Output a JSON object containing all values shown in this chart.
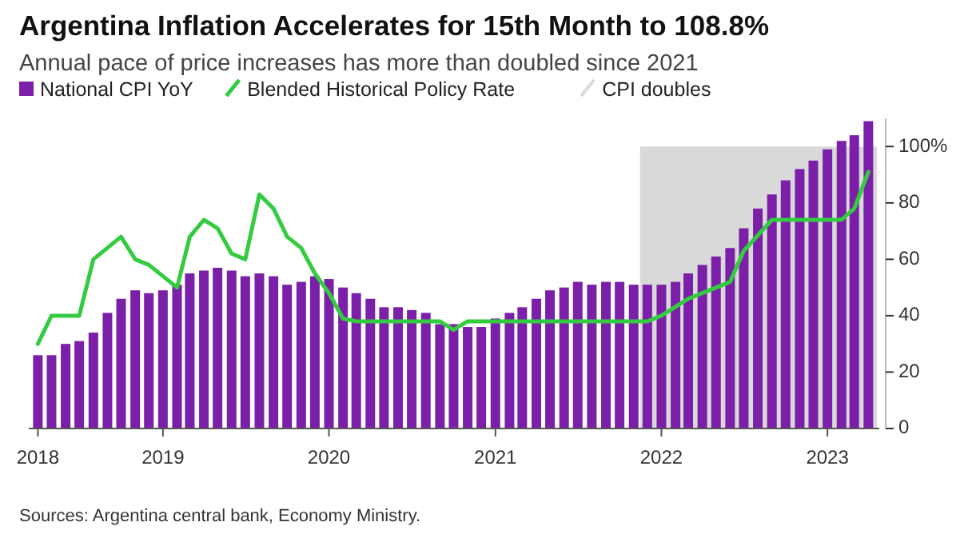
{
  "chart_data": {
    "type": "bar",
    "title": "Argentina Inflation Accelerates for 15th Month to 108.8%",
    "subtitle": "Annual pace of price increases has more than doubled since 2021",
    "x": [
      "2018-04",
      "2018-05",
      "2018-06",
      "2018-07",
      "2018-08",
      "2018-09",
      "2018-10",
      "2018-11",
      "2018-12",
      "2019-01",
      "2019-02",
      "2019-03",
      "2019-04",
      "2019-05",
      "2019-06",
      "2019-07",
      "2019-08",
      "2019-09",
      "2019-10",
      "2019-11",
      "2019-12",
      "2020-01",
      "2020-02",
      "2020-03",
      "2020-04",
      "2020-05",
      "2020-06",
      "2020-07",
      "2020-08",
      "2020-09",
      "2020-10",
      "2020-11",
      "2020-12",
      "2021-01",
      "2021-02",
      "2021-03",
      "2021-04",
      "2021-05",
      "2021-06",
      "2021-07",
      "2021-08",
      "2021-09",
      "2021-10",
      "2021-11",
      "2021-12",
      "2022-01",
      "2022-02",
      "2022-03",
      "2022-04",
      "2022-05",
      "2022-06",
      "2022-07",
      "2022-08",
      "2022-09",
      "2022-10",
      "2022-11",
      "2022-12",
      "2023-01",
      "2023-02",
      "2023-03",
      "2023-04"
    ],
    "series": [
      {
        "name": "National CPI YoY",
        "color": "#7b1fa8",
        "values": [
          26,
          26,
          30,
          31,
          34,
          41,
          46,
          49,
          48,
          49,
          51,
          55,
          56,
          57,
          56,
          54,
          55,
          54,
          51,
          52,
          54,
          53,
          50,
          48,
          46,
          43,
          43,
          42,
          41,
          37,
          37,
          36,
          36,
          39,
          41,
          43,
          46,
          49,
          50,
          52,
          51,
          52,
          52,
          51,
          51,
          51,
          52,
          55,
          58,
          61,
          64,
          71,
          78,
          83,
          88,
          92,
          95,
          99,
          102,
          104,
          109
        ]
      },
      {
        "name": "Blended Historical Policy Rate",
        "type": "line",
        "color": "#33cc40",
        "x": [
          "2018-04",
          "2018-05",
          "2018-07",
          "2018-08",
          "2018-10",
          "2018-11",
          "2018-12",
          "2019-02",
          "2019-03",
          "2019-04",
          "2019-05",
          "2019-06",
          "2019-07",
          "2019-08",
          "2019-09",
          "2019-10",
          "2019-11",
          "2019-12",
          "2020-01",
          "2020-02",
          "2020-03",
          "2020-09",
          "2020-10",
          "2020-11",
          "2021-12",
          "2022-01",
          "2022-03",
          "2022-06",
          "2022-07",
          "2022-09",
          "2023-02",
          "2023-03",
          "2023-04"
        ],
        "values": [
          30,
          40,
          40,
          60,
          68,
          60,
          58,
          50,
          68,
          74,
          71,
          62,
          60,
          83,
          78,
          68,
          64,
          55,
          48,
          39,
          38,
          38,
          35,
          38,
          38,
          40,
          46,
          52,
          63,
          74,
          74,
          78,
          91
        ]
      }
    ],
    "bands": [
      {
        "axis": "x",
        "from": "2021-11-15",
        "to": "2023-04-20",
        "label": "CPI doubles",
        "color": "#d9d9d9"
      }
    ],
    "xlim": [
      "2018-03-12",
      "2023-04-25"
    ],
    "xticks": [
      {
        "value": "2018-04",
        "label": "2018"
      },
      {
        "value": "2019-01",
        "label": "2019"
      },
      {
        "value": "2020-01",
        "label": "2020"
      },
      {
        "value": "2021-01",
        "label": "2021"
      },
      {
        "value": "2022-01",
        "label": "2022"
      },
      {
        "value": "2023-01",
        "label": "2023"
      }
    ],
    "ylim": [
      0,
      110
    ],
    "yticks": [
      0,
      20,
      40,
      60,
      80,
      {
        "value": 100,
        "label": "100%"
      }
    ],
    "legend": "top",
    "grid": false,
    "annotations": [
      "Sources: Argentina central bank, Economy Ministry."
    ]
  }
}
